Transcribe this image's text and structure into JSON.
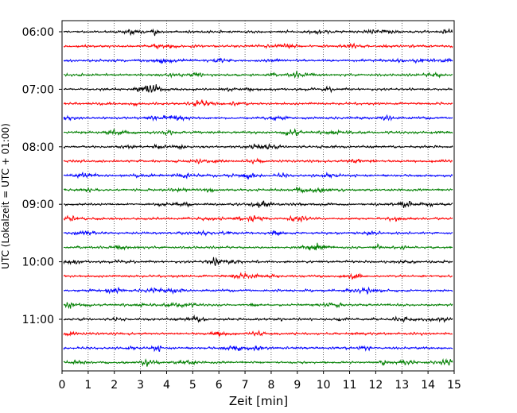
{
  "chart_data": {
    "type": "line",
    "subtype": "helicorder",
    "xlabel": "Zeit  [min]",
    "ylabel": "UTC (Lokalzeit = UTC + 01:00)",
    "xlim": [
      0,
      15
    ],
    "x_ticks": [
      "0",
      "1",
      "2",
      "3",
      "4",
      "5",
      "6",
      "7",
      "8",
      "9",
      "10",
      "11",
      "12",
      "13",
      "14",
      "15"
    ],
    "y_tick_labels": [
      "06:00",
      "07:00",
      "08:00",
      "09:00",
      "10:00",
      "11:00"
    ],
    "trace_interval_min": 15,
    "start_time": "06:00",
    "end_time": "12:00",
    "trace_colors": [
      "#000000",
      "#ff0000",
      "#0000ff",
      "#007f00"
    ],
    "traces": [
      {
        "start": "06:00"
      },
      {
        "start": "06:15"
      },
      {
        "start": "06:30"
      },
      {
        "start": "06:45"
      },
      {
        "start": "07:00"
      },
      {
        "start": "07:15"
      },
      {
        "start": "07:30"
      },
      {
        "start": "07:45"
      },
      {
        "start": "08:00"
      },
      {
        "start": "08:15"
      },
      {
        "start": "08:30"
      },
      {
        "start": "08:45"
      },
      {
        "start": "09:00"
      },
      {
        "start": "09:15"
      },
      {
        "start": "09:30"
      },
      {
        "start": "09:45"
      },
      {
        "start": "10:00"
      },
      {
        "start": "10:15"
      },
      {
        "start": "10:30"
      },
      {
        "start": "10:45"
      },
      {
        "start": "11:00"
      },
      {
        "start": "11:15"
      },
      {
        "start": "11:30"
      },
      {
        "start": "11:45"
      }
    ],
    "x_grid": true,
    "grid_style": "dotted"
  }
}
